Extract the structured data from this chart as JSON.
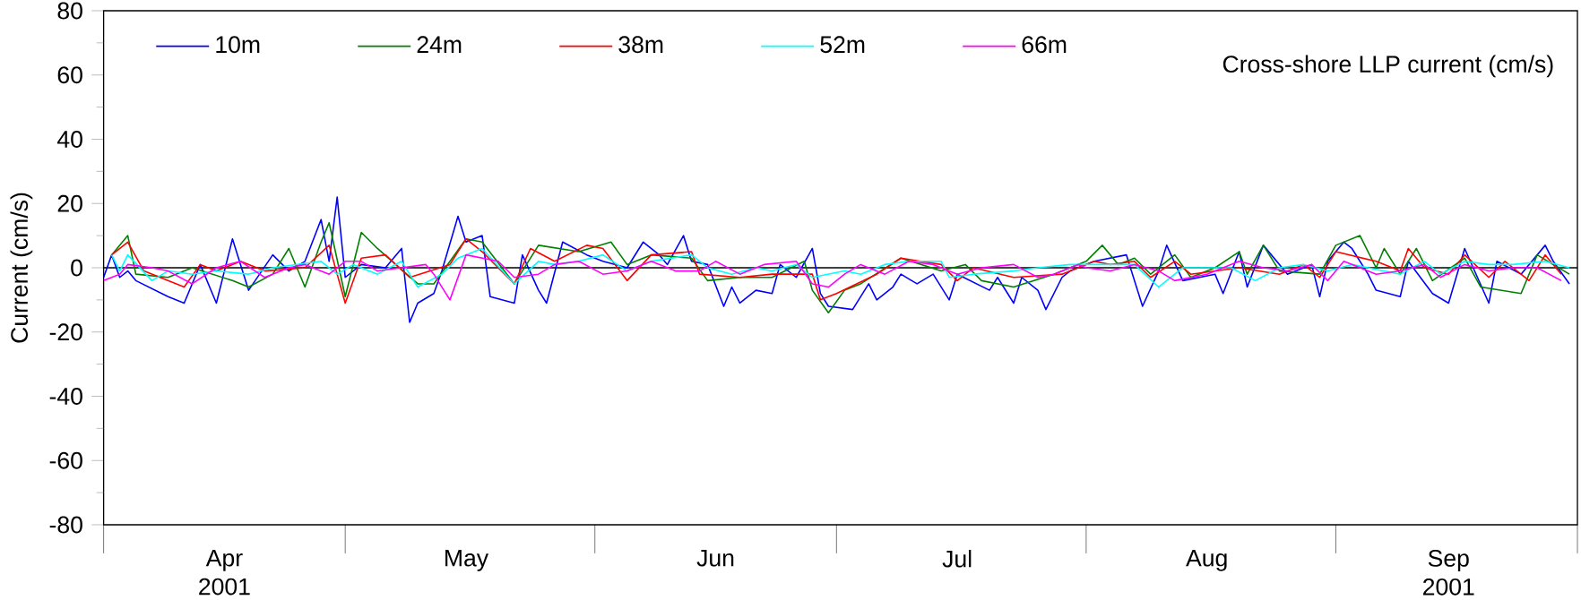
{
  "chart_data": {
    "type": "line",
    "title": "Cross-shore LLP current (cm/s)",
    "ylabel": "Current (cm/s)",
    "xlim": [
      "2001-04-01",
      "2001-10-01"
    ],
    "xticks": [
      {
        "value": "2001-04-01",
        "label": null
      },
      {
        "value": "2001-04-16",
        "label": "Apr 2001"
      },
      {
        "value": "2001-05-01",
        "label": null
      },
      {
        "value": "2001-05-16",
        "label": "May"
      },
      {
        "value": "2001-06-01",
        "label": null
      },
      {
        "value": "2001-06-16",
        "label": "Jun"
      },
      {
        "value": "2001-07-01",
        "label": null
      },
      {
        "value": "2001-07-16",
        "label": "Jul"
      },
      {
        "value": "2001-08-01",
        "label": null
      },
      {
        "value": "2001-08-16",
        "label": "Aug"
      },
      {
        "value": "2001-09-01",
        "label": null
      },
      {
        "value": "2001-09-15",
        "label": "Sep 2001"
      },
      {
        "value": "2001-10-01",
        "label": null
      }
    ],
    "ylim": [
      -80,
      80
    ],
    "yticks": [
      -80,
      {
        "value": -70,
        "label": null
      },
      -60,
      {
        "value": -50,
        "label": null
      },
      -40,
      {
        "value": -30,
        "label": null
      },
      -20,
      {
        "value": -10,
        "label": null
      },
      0,
      {
        "value": 10,
        "label": null
      },
      20,
      {
        "value": 30,
        "label": null
      },
      40,
      {
        "value": 50,
        "label": null
      },
      60,
      {
        "value": 70,
        "label": null
      },
      80
    ],
    "legend": "top left",
    "ref_lines": [
      {
        "axis": "y",
        "value": 0,
        "color": "#000000"
      }
    ],
    "series": [
      {
        "name": "10m",
        "color": "#0000ff",
        "x": [
          "2001-04-01",
          "2001-04-02",
          "2001-04-03",
          "2001-04-04",
          "2001-04-05",
          "2001-04-09",
          "2001-04-11",
          "2001-04-13",
          "2001-04-15",
          "2001-04-17",
          "2001-04-18",
          "2001-04-19",
          "2001-04-22",
          "2001-04-24",
          "2001-04-26",
          "2001-04-28",
          "2001-04-29",
          "2001-04-30",
          "2001-05-01",
          "2001-05-03",
          "2001-05-06",
          "2001-05-08",
          "2001-05-09",
          "2001-05-10",
          "2001-05-12",
          "2001-05-13",
          "2001-05-15",
          "2001-05-16",
          "2001-05-18",
          "2001-05-19",
          "2001-05-22",
          "2001-05-23",
          "2001-05-25",
          "2001-05-26",
          "2001-05-28",
          "2001-05-31",
          "2001-06-02",
          "2001-06-05",
          "2001-06-07",
          "2001-06-09",
          "2001-06-10",
          "2001-06-12",
          "2001-06-13",
          "2001-06-15",
          "2001-06-17",
          "2001-06-18",
          "2001-06-19",
          "2001-06-21",
          "2001-06-23",
          "2001-06-24",
          "2001-06-26",
          "2001-06-28",
          "2001-06-29",
          "2001-06-30",
          "2001-07-03",
          "2001-07-05",
          "2001-07-06",
          "2001-07-08",
          "2001-07-09",
          "2001-07-11",
          "2001-07-13",
          "2001-07-15",
          "2001-07-16",
          "2001-07-20",
          "2001-07-21",
          "2001-07-23",
          "2001-07-24",
          "2001-07-26",
          "2001-07-27",
          "2001-07-29",
          "2001-07-30",
          "2001-08-02",
          "2001-08-06",
          "2001-08-08",
          "2001-08-10",
          "2001-08-11",
          "2001-08-13",
          "2001-08-17",
          "2001-08-18",
          "2001-08-20",
          "2001-08-21",
          "2001-08-23",
          "2001-08-26",
          "2001-08-29",
          "2001-08-30",
          "2001-08-31",
          "2001-09-02",
          "2001-09-03",
          "2001-09-05",
          "2001-09-06",
          "2001-09-09",
          "2001-09-10",
          "2001-09-13",
          "2001-09-15",
          "2001-09-17",
          "2001-09-20",
          "2001-09-21",
          "2001-09-24",
          "2001-09-27",
          "2001-09-28",
          "2001-09-30"
        ],
        "values": [
          -3,
          4,
          -3,
          -1,
          -4,
          -9,
          -11,
          1,
          -11,
          9,
          1,
          -7,
          4,
          -1,
          2,
          15,
          2,
          22,
          -3,
          1,
          0,
          6,
          -17,
          -11,
          -8,
          -1,
          16,
          8,
          10,
          -9,
          -11,
          4,
          -7,
          -11,
          8,
          4,
          2,
          0,
          8,
          4,
          1,
          10,
          2,
          1,
          -12,
          -6,
          -11,
          -7,
          -8,
          1,
          -3,
          6,
          -8,
          -12,
          -13,
          -5,
          -10,
          -6,
          -2,
          -5,
          -2,
          -10,
          -2,
          -7,
          -3,
          -11,
          -3,
          -7,
          -13,
          -3,
          -1,
          2,
          4,
          -12,
          -1,
          7,
          -4,
          -2,
          -8,
          5,
          -6,
          7,
          -2,
          1,
          -9,
          2,
          8,
          6,
          -2,
          -7,
          -9,
          2,
          -8,
          -11,
          6,
          -11,
          2,
          -2,
          7,
          2,
          -5
        ]
      },
      {
        "name": "24m",
        "color": "#008000",
        "x": [
          "2001-04-02",
          "2001-04-04",
          "2001-04-05",
          "2001-04-09",
          "2001-04-12",
          "2001-04-17",
          "2001-04-19",
          "2001-04-22",
          "2001-04-24",
          "2001-04-26",
          "2001-04-28",
          "2001-04-29",
          "2001-05-01",
          "2001-05-03",
          "2001-05-05",
          "2001-05-10",
          "2001-05-12",
          "2001-05-16",
          "2001-05-18",
          "2001-05-22",
          "2001-05-25",
          "2001-05-30",
          "2001-06-03",
          "2001-06-05",
          "2001-06-08",
          "2001-06-13",
          "2001-06-15",
          "2001-06-19",
          "2001-06-23",
          "2001-06-27",
          "2001-06-28",
          "2001-06-30",
          "2001-07-02",
          "2001-07-04",
          "2001-07-09",
          "2001-07-14",
          "2001-07-17",
          "2001-07-19",
          "2001-07-23",
          "2001-07-28",
          "2001-08-01",
          "2001-08-03",
          "2001-08-05",
          "2001-08-07",
          "2001-08-09",
          "2001-08-12",
          "2001-08-14",
          "2001-08-17",
          "2001-08-20",
          "2001-08-21",
          "2001-08-23",
          "2001-08-25",
          "2001-08-30",
          "2001-09-01",
          "2001-09-04",
          "2001-09-06",
          "2001-09-07",
          "2001-09-09",
          "2001-09-11",
          "2001-09-13",
          "2001-09-17",
          "2001-09-19",
          "2001-09-24",
          "2001-09-26",
          "2001-09-30"
        ],
        "values": [
          4,
          10,
          -2,
          -3,
          0,
          -4,
          -6,
          -2,
          6,
          -6,
          8,
          14,
          -9,
          11,
          6,
          -5,
          -5,
          9,
          8,
          -5,
          7,
          5,
          8,
          1,
          4,
          3,
          -4,
          -3,
          -3,
          2,
          -7,
          -14,
          -7,
          -5,
          3,
          -1,
          1,
          -4,
          -6,
          -2,
          2,
          7,
          1,
          3,
          -2,
          4,
          -3,
          0,
          5,
          -2,
          7,
          -1,
          -2,
          7,
          10,
          0,
          6,
          -2,
          6,
          -4,
          3,
          -6,
          -8,
          4,
          -2
        ]
      },
      {
        "name": "38m",
        "color": "#ff0000",
        "x": [
          "2001-04-02",
          "2001-04-04",
          "2001-04-06",
          "2001-04-11",
          "2001-04-13",
          "2001-04-15",
          "2001-04-18",
          "2001-04-21",
          "2001-04-26",
          "2001-04-29",
          "2001-05-01",
          "2001-05-03",
          "2001-05-06",
          "2001-05-09",
          "2001-05-14",
          "2001-05-16",
          "2001-05-18",
          "2001-05-22",
          "2001-05-24",
          "2001-05-27",
          "2001-05-31",
          "2001-06-02",
          "2001-06-05",
          "2001-06-08",
          "2001-06-13",
          "2001-06-14",
          "2001-06-19",
          "2001-06-23",
          "2001-06-28",
          "2001-06-29",
          "2001-07-01",
          "2001-07-06",
          "2001-07-09",
          "2001-07-14",
          "2001-07-16",
          "2001-07-18",
          "2001-07-23",
          "2001-07-29",
          "2001-08-02",
          "2001-08-04",
          "2001-08-07",
          "2001-08-09",
          "2001-08-12",
          "2001-08-14",
          "2001-08-20",
          "2001-08-25",
          "2001-08-28",
          "2001-08-30",
          "2001-09-01",
          "2001-09-06",
          "2001-09-09",
          "2001-09-10",
          "2001-09-12",
          "2001-09-15",
          "2001-09-17",
          "2001-09-20",
          "2001-09-22",
          "2001-09-25",
          "2001-09-27",
          "2001-09-29"
        ],
        "values": [
          4,
          8,
          -1,
          -6,
          1,
          -1,
          2,
          -1,
          0,
          7,
          -11,
          3,
          4,
          -3,
          1,
          9,
          5,
          -5,
          6,
          2,
          7,
          6,
          -4,
          4,
          5,
          -2,
          -3,
          -2,
          -2,
          -10,
          -8,
          -2,
          3,
          1,
          -4,
          0,
          -3,
          -2,
          2,
          1,
          2,
          -3,
          2,
          -2,
          0,
          -2,
          1,
          -3,
          5,
          2,
          -1,
          6,
          0,
          -2,
          4,
          -3,
          2,
          -4,
          4,
          -2
        ]
      },
      {
        "name": "52m",
        "color": "#00ffff",
        "x": [
          "2001-04-02",
          "2001-04-03",
          "2001-04-04",
          "2001-04-07",
          "2001-04-09",
          "2001-04-12",
          "2001-04-15",
          "2001-04-19",
          "2001-04-22",
          "2001-04-28",
          "2001-04-30",
          "2001-05-02",
          "2001-05-05",
          "2001-05-08",
          "2001-05-10",
          "2001-05-13",
          "2001-05-15",
          "2001-05-18",
          "2001-05-22",
          "2001-05-25",
          "2001-05-27",
          "2001-05-30",
          "2001-06-02",
          "2001-06-05",
          "2001-06-08",
          "2001-06-13",
          "2001-06-15",
          "2001-06-18",
          "2001-06-21",
          "2001-06-23",
          "2001-06-26",
          "2001-06-28",
          "2001-07-02",
          "2001-07-04",
          "2001-07-07",
          "2001-07-10",
          "2001-07-14",
          "2001-07-15",
          "2001-07-18",
          "2001-07-23",
          "2001-07-26",
          "2001-07-30",
          "2001-08-01",
          "2001-08-04",
          "2001-08-07",
          "2001-08-10",
          "2001-08-13",
          "2001-08-16",
          "2001-08-19",
          "2001-08-22",
          "2001-08-25",
          "2001-08-28",
          "2001-08-31",
          "2001-09-03",
          "2001-09-09",
          "2001-09-12",
          "2001-09-14",
          "2001-09-17",
          "2001-09-20",
          "2001-09-23",
          "2001-09-27",
          "2001-09-30"
        ],
        "values": [
          4,
          -1,
          4,
          -4,
          -1,
          -2,
          -1,
          -2,
          0,
          2,
          -2,
          1,
          -2,
          2,
          -6,
          -2,
          3,
          6,
          -5,
          2,
          1,
          2,
          4,
          -1,
          2,
          4,
          0,
          -2,
          0,
          -1,
          1,
          -3,
          -1,
          -2,
          1,
          2,
          2,
          -3,
          -2,
          -1,
          0,
          1,
          1,
          1,
          1,
          -6,
          0,
          null,
          0,
          -4,
          0,
          1,
          -1,
          1,
          -2,
          2,
          -2,
          2,
          1,
          1,
          2,
          0
        ]
      },
      {
        "name": "66m",
        "color": "#ff00ff",
        "x": [
          "2001-04-01",
          "2001-04-03",
          "2001-04-04",
          "2001-04-07",
          "2001-04-09",
          "2001-04-12",
          "2001-04-15",
          "2001-04-18",
          "2001-04-21",
          "2001-04-24",
          "2001-04-26",
          "2001-04-29",
          "2001-05-01",
          "2001-05-03",
          "2001-05-05",
          "2001-05-08",
          "2001-05-11",
          "2001-05-12",
          "2001-05-14",
          "2001-05-16",
          "2001-05-20",
          "2001-05-22",
          "2001-05-25",
          "2001-05-27",
          "2001-05-30",
          "2001-06-02",
          "2001-06-05",
          "2001-06-08",
          "2001-06-11",
          "2001-06-14",
          "2001-06-16",
          "2001-06-19",
          "2001-06-22",
          "2001-06-26",
          "2001-06-28",
          "2001-06-30",
          "2001-07-02",
          "2001-07-04",
          "2001-07-07",
          "2001-07-10",
          "2001-07-13",
          "2001-07-16",
          "2001-07-19",
          "2001-07-23",
          "2001-07-26",
          "2001-07-28",
          "2001-07-31",
          "2001-08-01",
          "2001-08-04",
          "2001-08-07",
          "2001-08-10",
          "2001-08-12",
          "2001-08-16",
          "2001-08-20",
          "2001-08-23",
          "2001-08-26",
          "2001-08-29",
          "2001-08-31",
          "2001-09-02",
          "2001-09-06",
          "2001-09-09",
          "2001-09-12",
          "2001-09-14",
          "2001-09-17",
          "2001-09-20",
          "2001-09-23",
          "2001-09-26",
          "2001-09-29"
        ],
        "values": [
          -4,
          -2,
          1,
          0,
          -1,
          -5,
          0,
          2,
          -3,
          0,
          1,
          -2,
          2,
          2,
          -1,
          0,
          1,
          -2,
          -10,
          4,
          2,
          -3,
          -2,
          1,
          2,
          -2,
          -1,
          2,
          -1,
          -1,
          2,
          -2,
          1,
          2,
          -5,
          -6,
          -2,
          1,
          -2,
          2,
          1,
          -2,
          0,
          1,
          -3,
          -2,
          1,
          0,
          -1,
          1,
          -1,
          -4,
          -2,
          2,
          0,
          -1,
          1,
          -4,
          2,
          -2,
          -1,
          1,
          -3,
          1,
          -1,
          0,
          0,
          -4
        ]
      }
    ]
  }
}
